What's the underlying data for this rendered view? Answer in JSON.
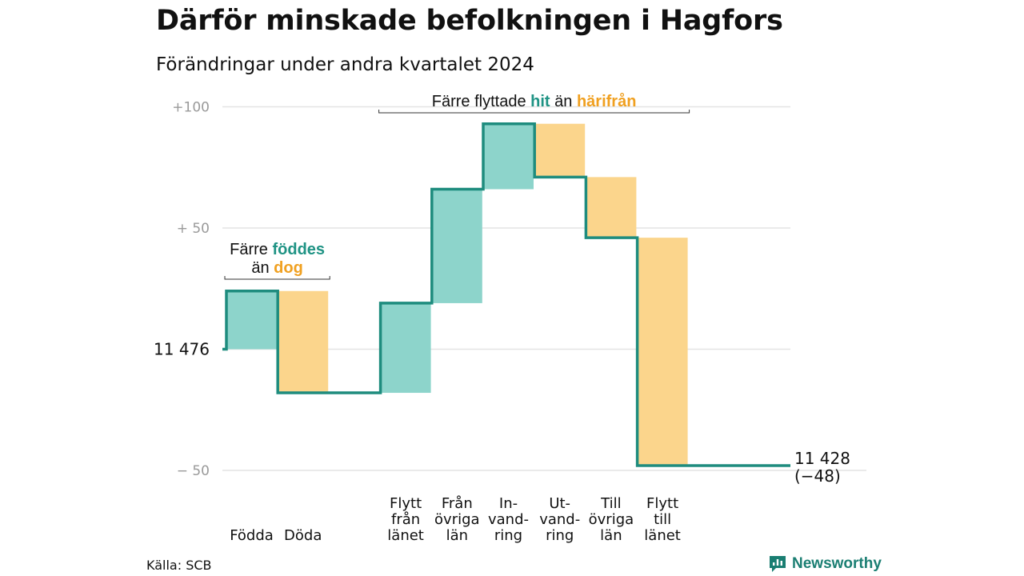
{
  "header": {
    "title": "Därför minskade befolkningen i Hagfors",
    "subtitle": "Förändringar under andra kvartalet 2024"
  },
  "footer": {
    "source": "Källa: SCB",
    "brand": "Newsworthy"
  },
  "colors": {
    "increase": "#8dd4cb",
    "decrease": "#fbd58c",
    "line": "#1e8c7e",
    "grid": "#e3e3e3",
    "teal_text": "#1f9384",
    "orange_text": "#f0a020"
  },
  "chart_data": {
    "type": "waterfall",
    "title": "Därför minskade befolkningen i Hagfors",
    "subtitle": "Förändringar under andra kvartalet 2024",
    "start_value": 11476,
    "end_value": 11428,
    "net_change": -48,
    "start_label": "11  476",
    "end_label_lines": [
      "11 428",
      "(−48)"
    ],
    "ylim": [
      -50,
      100
    ],
    "yticks": [
      {
        "value": 100,
        "label": "+100"
      },
      {
        "value": 50,
        "label": "+  50"
      },
      {
        "value": -50,
        "label": "−  50"
      }
    ],
    "grid": true,
    "steps": [
      {
        "label_lines": [
          "Födda"
        ],
        "value": 24,
        "type": "increase"
      },
      {
        "label_lines": [
          "Döda"
        ],
        "value": -42,
        "type": "decrease"
      },
      {
        "label_lines": [
          "Flytt",
          "från",
          "länet"
        ],
        "value": 37,
        "type": "increase"
      },
      {
        "label_lines": [
          "Från",
          "övriga",
          "län"
        ],
        "value": 47,
        "type": "increase"
      },
      {
        "label_lines": [
          "In-",
          "vand-",
          "ring"
        ],
        "value": 27,
        "type": "increase"
      },
      {
        "label_lines": [
          "Ut-",
          "vand-",
          "ring"
        ],
        "value": -22,
        "type": "decrease"
      },
      {
        "label_lines": [
          "Till",
          "övriga",
          "län"
        ],
        "value": -25,
        "type": "decrease"
      },
      {
        "label_lines": [
          "Flytt",
          "till",
          "länet"
        ],
        "value": -94,
        "type": "decrease"
      }
    ],
    "annotations": [
      {
        "id": "births",
        "lines": [
          [
            {
              "text": "Färre ",
              "style": "plain"
            },
            {
              "text": "föddes",
              "style": "teal"
            }
          ],
          [
            {
              "text": "än ",
              "style": "plain"
            },
            {
              "text": "dog",
              "style": "orange"
            }
          ]
        ],
        "span_steps": [
          0,
          1
        ]
      },
      {
        "id": "migration",
        "lines": [
          [
            {
              "text": "Färre flyttade ",
              "style": "plain"
            },
            {
              "text": "hit",
              "style": "teal"
            },
            {
              "text": "  än ",
              "style": "plain"
            },
            {
              "text": "härifrån",
              "style": "orange"
            }
          ]
        ],
        "span_steps": [
          2,
          7
        ]
      }
    ]
  }
}
